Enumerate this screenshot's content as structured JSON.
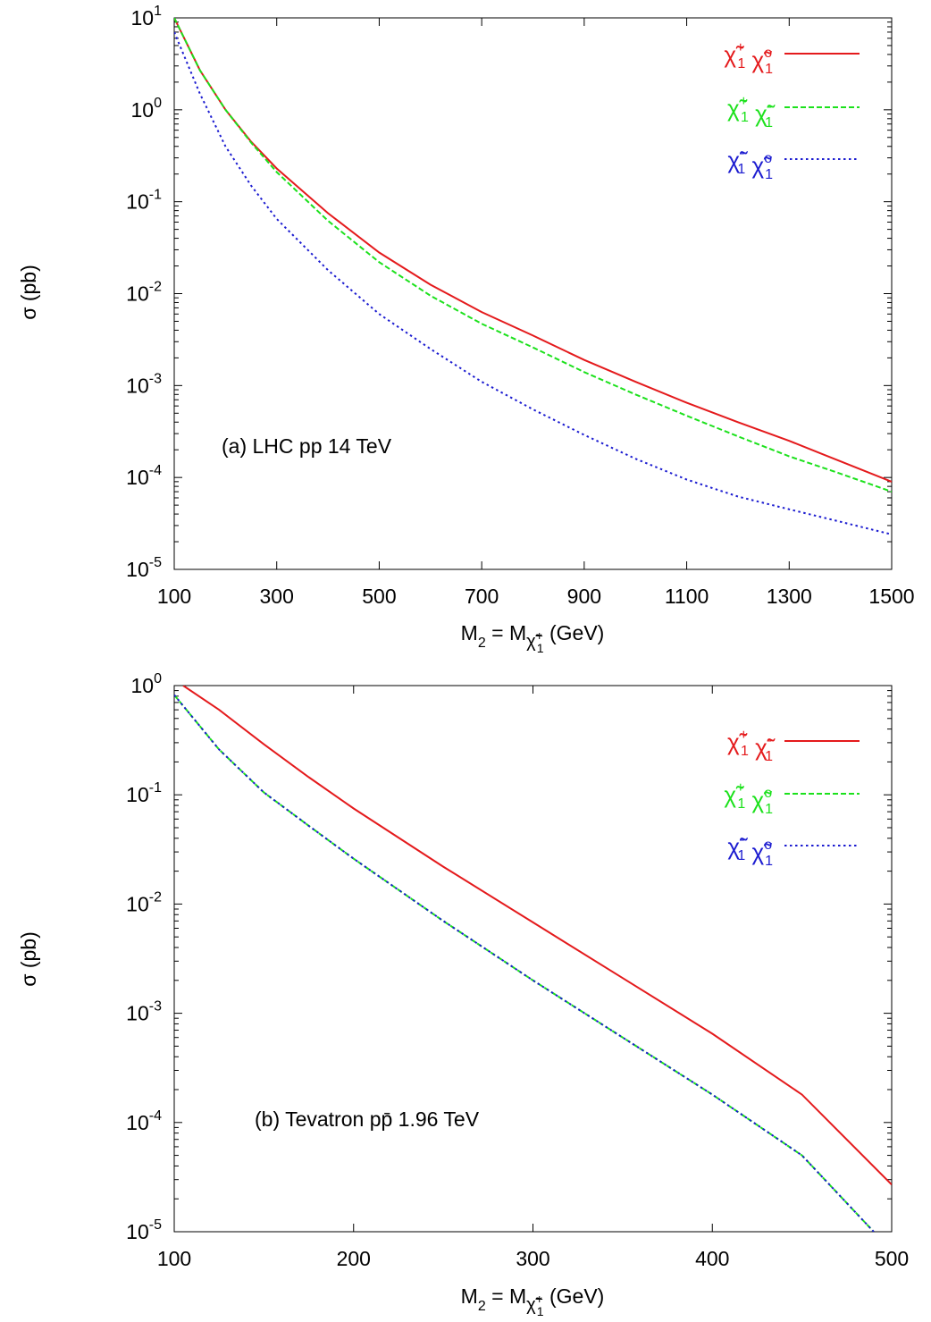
{
  "chart_data": [
    {
      "type": "line",
      "annotation": "(a) LHC pp 14 TeV",
      "xlabel": {
        "main": "M",
        "sub1": "2",
        "mid": " = M",
        "particle": "χ̃",
        "psub": "1",
        "psup": "+",
        "unit": "(GeV)"
      },
      "ylabel": {
        "symbol": "σ",
        "unit": "(pb)"
      },
      "xscale": "linear",
      "yscale": "log",
      "xlim": [
        100,
        1500
      ],
      "ylim": [
        1e-05,
        10
      ],
      "xticks": [
        "100",
        "300",
        "500",
        "700",
        "900",
        "1100",
        "1300",
        "1500"
      ],
      "yticks": [
        {
          "base": "10",
          "exp": "1"
        },
        {
          "base": "10",
          "exp": "0"
        },
        {
          "base": "10",
          "exp": "-1"
        },
        {
          "base": "10",
          "exp": "-2"
        },
        {
          "base": "10",
          "exp": "-3"
        },
        {
          "base": "10",
          "exp": "-4"
        },
        {
          "base": "10",
          "exp": "-5"
        }
      ],
      "legend_position": "top-right",
      "series": [
        {
          "label": [
            {
              "glyph": "χ̃",
              "sub": "1",
              "sup": "+"
            },
            {
              "glyph": "χ̃",
              "sub": "1",
              "sup": "o"
            }
          ],
          "color": "#e41a1c",
          "dash": "solid",
          "x": [
            100,
            150,
            200,
            250,
            300,
            400,
            500,
            600,
            700,
            800,
            900,
            1000,
            1100,
            1200,
            1300,
            1400,
            1500
          ],
          "y": [
            10,
            2.7,
            1.0,
            0.45,
            0.23,
            0.075,
            0.028,
            0.0125,
            0.0063,
            0.0035,
            0.0019,
            0.0011,
            0.00065,
            0.0004,
            0.00025,
            0.00015,
            9e-05
          ]
        },
        {
          "label": [
            {
              "glyph": "χ̃",
              "sub": "1",
              "sup": "+"
            },
            {
              "glyph": "χ̃",
              "sub": "1",
              "sup": "-"
            }
          ],
          "color": "#1ce11c",
          "dash": "dashed",
          "x": [
            100,
            150,
            200,
            250,
            300,
            400,
            500,
            600,
            700,
            800,
            900,
            1000,
            1100,
            1200,
            1300,
            1400,
            1500
          ],
          "y": [
            10,
            2.7,
            1.0,
            0.44,
            0.21,
            0.062,
            0.022,
            0.0095,
            0.0047,
            0.0026,
            0.0014,
            0.0008,
            0.00047,
            0.00028,
            0.00017,
            0.00011,
            7e-05
          ]
        },
        {
          "label": [
            {
              "glyph": "χ̃",
              "sub": "1",
              "sup": "-"
            },
            {
              "glyph": "χ̃",
              "sub": "1",
              "sup": "o"
            }
          ],
          "color": "#1c1cd0",
          "dash": "dotted",
          "x": [
            100,
            150,
            200,
            250,
            300,
            400,
            500,
            600,
            700,
            800,
            900,
            1000,
            1100,
            1200,
            1300,
            1400,
            1500
          ],
          "y": [
            7,
            1.5,
            0.4,
            0.15,
            0.065,
            0.018,
            0.006,
            0.0025,
            0.0011,
            0.00055,
            0.00029,
            0.00016,
            9.5e-05,
            6.2e-05,
            4.5e-05,
            3.3e-05,
            2.4e-05
          ]
        }
      ]
    },
    {
      "type": "line",
      "annotation": "(b) Tevatron pp̄  1.96 TeV",
      "xlabel": {
        "main": "M",
        "sub1": "2",
        "mid": " = M",
        "particle": "χ̃",
        "psub": "1",
        "psup": "+",
        "unit": "(GeV)"
      },
      "ylabel": {
        "symbol": "σ",
        "unit": "(pb)"
      },
      "xscale": "linear",
      "yscale": "log",
      "xlim": [
        100,
        500
      ],
      "ylim": [
        1e-05,
        1
      ],
      "xticks": [
        "100",
        "200",
        "300",
        "400",
        "500"
      ],
      "yticks": [
        {
          "base": "10",
          "exp": "0"
        },
        {
          "base": "10",
          "exp": "-1"
        },
        {
          "base": "10",
          "exp": "-2"
        },
        {
          "base": "10",
          "exp": "-3"
        },
        {
          "base": "10",
          "exp": "-4"
        },
        {
          "base": "10",
          "exp": "-5"
        }
      ],
      "legend_position": "top-right",
      "series": [
        {
          "label": [
            {
              "glyph": "χ̃",
              "sub": "1",
              "sup": "+"
            },
            {
              "glyph": "χ̃",
              "sub": "1",
              "sup": "-"
            }
          ],
          "color": "#e41a1c",
          "dash": "solid",
          "x": [
            105,
            125,
            150,
            175,
            200,
            250,
            300,
            350,
            400,
            450,
            500
          ],
          "y": [
            1.0,
            0.6,
            0.29,
            0.145,
            0.075,
            0.022,
            0.0068,
            0.0021,
            0.00065,
            0.00018,
            2.7e-05
          ]
        },
        {
          "label": [
            {
              "glyph": "χ̃",
              "sub": "1",
              "sup": "+"
            },
            {
              "glyph": "χ̃",
              "sub": "1",
              "sup": "o"
            }
          ],
          "color": "#1ce11c",
          "dash": "dashed",
          "x": [
            100,
            125,
            150,
            175,
            200,
            250,
            300,
            350,
            400,
            450,
            490
          ],
          "y": [
            0.82,
            0.26,
            0.105,
            0.052,
            0.026,
            0.007,
            0.002,
            0.0006,
            0.00018,
            5e-05,
            1e-05
          ]
        },
        {
          "label": [
            {
              "glyph": "χ̃",
              "sub": "1",
              "sup": "-"
            },
            {
              "glyph": "χ̃",
              "sub": "1",
              "sup": "o"
            }
          ],
          "color": "#1c1cd0",
          "dash": "dotted",
          "x": [
            100,
            125,
            150,
            175,
            200,
            250,
            300,
            350,
            400,
            450,
            490
          ],
          "y": [
            0.82,
            0.26,
            0.105,
            0.052,
            0.026,
            0.007,
            0.002,
            0.0006,
            0.00018,
            5e-05,
            1e-05
          ]
        }
      ]
    }
  ]
}
